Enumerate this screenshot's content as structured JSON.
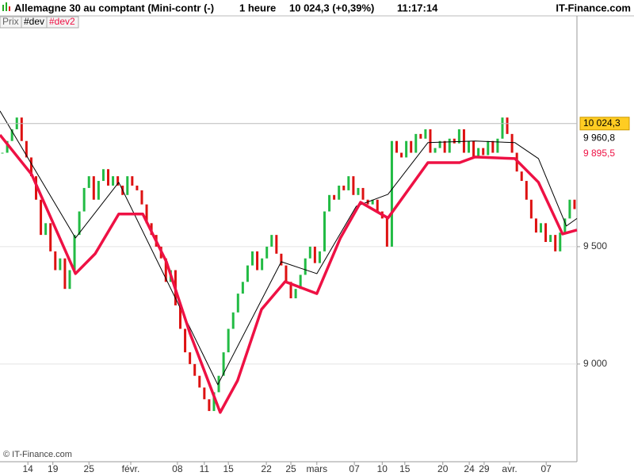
{
  "chart_data": {
    "type": "candlestick",
    "header": {
      "instrument": "Allemagne 30 au comptant (Mini-contr (-)",
      "period": "1 heure",
      "quote": "10 024,3 (+0,39%)",
      "time": "11:17:14",
      "brand": "IT-Finance.com"
    },
    "tabs": [
      "Prix",
      "#dev",
      "#dev2"
    ],
    "copyright": "© IT-Finance.com",
    "xlim": [
      0,
      120
    ],
    "ylim": [
      8584,
      10483
    ],
    "yticks": [
      {
        "value": 9000,
        "label": "9 000"
      },
      {
        "value": 9500,
        "label": "9 500"
      }
    ],
    "xticks": [
      {
        "value": 5.8,
        "label": "14"
      },
      {
        "value": 11,
        "label": "19"
      },
      {
        "value": 18.5,
        "label": "25"
      },
      {
        "value": 27.2,
        "label": "févr."
      },
      {
        "value": 36.9,
        "label": "08"
      },
      {
        "value": 42.5,
        "label": "11"
      },
      {
        "value": 47.5,
        "label": "15"
      },
      {
        "value": 55.4,
        "label": "22"
      },
      {
        "value": 60.5,
        "label": "25"
      },
      {
        "value": 65.9,
        "label": "mars"
      },
      {
        "value": 73.7,
        "label": "07"
      },
      {
        "value": 79.5,
        "label": "10"
      },
      {
        "value": 84.2,
        "label": "15"
      },
      {
        "value": 92.1,
        "label": "20"
      },
      {
        "value": 97.6,
        "label": "24"
      },
      {
        "value": 100.7,
        "label": "29"
      },
      {
        "value": 106,
        "label": "avr."
      },
      {
        "value": 113.6,
        "label": "07"
      }
    ],
    "up_color": "#22bb44",
    "down_color": "#dd1111",
    "close": [
      9900,
      9950,
      10000,
      10050,
      9950,
      9880,
      9800,
      9700,
      9550,
      9600,
      9480,
      9400,
      9450,
      9320,
      9400,
      9550,
      9650,
      9750,
      9800,
      9700,
      9780,
      9830,
      9760,
      9800,
      9760,
      9720,
      9800,
      9760,
      9740,
      9680,
      9600,
      9550,
      9500,
      9450,
      9350,
      9400,
      9250,
      9150,
      9050,
      9000,
      8950,
      8900,
      8850,
      8800,
      8880,
      8950,
      9050,
      9150,
      9220,
      9300,
      9350,
      9420,
      9480,
      9400,
      9450,
      9500,
      9550,
      9470,
      9420,
      9350,
      9280,
      9320,
      9380,
      9450,
      9500,
      9430,
      9480,
      9650,
      9720,
      9700,
      9760,
      9740,
      9800,
      9720,
      9750,
      9700,
      9680,
      9700,
      9650,
      9620,
      9500,
      9950,
      9900,
      9880,
      9950,
      9900,
      9980,
      9960,
      10000,
      9900,
      9920,
      9950,
      9900,
      9960,
      9940,
      10000,
      9900,
      9950,
      9880,
      9920,
      9890,
      9950,
      9900,
      9960,
      10050,
      9980,
      9900,
      9820,
      9780,
      9700,
      9620,
      9560,
      9600,
      9520,
      9550,
      9480,
      9560,
      9620,
      9700,
      9660
    ],
    "series": [
      {
        "name": "#dev",
        "color": "#000000",
        "width": 1,
        "x": [
          0,
          15.7,
          24.7,
          45.3,
          58.5,
          65.9,
          74.1,
          80.7,
          89,
          98.8,
          107.1,
          112,
          117.8,
          120
        ],
        "values": [
          10078,
          9537,
          9774,
          8912,
          9436,
          9385,
          9672,
          9723,
          9943,
          9950,
          9943,
          9875,
          9588,
          9620
        ]
      },
      {
        "name": "#dev2",
        "color": "#ee1144",
        "width": 3.5,
        "x": [
          0,
          6.6,
          15.7,
          19.8,
          24.7,
          29.7,
          34.6,
          39.5,
          45.8,
          49.4,
          54.4,
          59.3,
          65.9,
          70.8,
          75,
          80.7,
          89,
          95.6,
          98.8,
          107.1,
          112,
          117,
          120
        ],
        "values": [
          9976,
          9807,
          9385,
          9470,
          9639,
          9639,
          9436,
          9132,
          8794,
          8929,
          9233,
          9351,
          9300,
          9537,
          9689,
          9622,
          9858,
          9858,
          9882,
          9875,
          9774,
          9554,
          9571
        ]
      }
    ],
    "price_labels": [
      {
        "value": 10024.3,
        "label": "10 024,3"
      },
      {
        "value": 9960.8,
        "label": "9 960,8"
      },
      {
        "value": 9895.5,
        "label": "9 895,5"
      }
    ]
  }
}
